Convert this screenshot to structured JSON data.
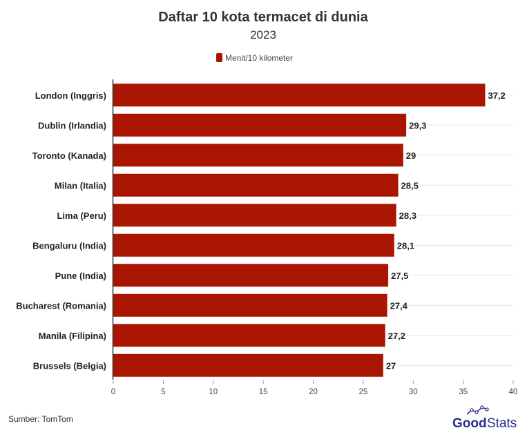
{
  "chart_data": {
    "type": "bar",
    "orientation": "horizontal",
    "title": "Daftar 10 kota termacet di dunia",
    "subtitle": "2023",
    "categories": [
      "London (Inggris)",
      "Dublin (Irlandia)",
      "Toronto (Kanada)",
      "Milan (Italia)",
      "Lima (Peru)",
      "Bengaluru (India)",
      "Pune (India)",
      "Bucharest (Romania)",
      "Manila (Filipina)",
      "Brussels (Belgia)"
    ],
    "series": [
      {
        "name": "Menit/10 kilometer",
        "values": [
          37.2,
          29.3,
          29,
          28.5,
          28.3,
          28.1,
          27.5,
          27.4,
          27.2,
          27
        ],
        "labels": [
          "37,2",
          "29,3",
          "29",
          "28,5",
          "28,3",
          "28,1",
          "27,5",
          "27,4",
          "27,2",
          "27"
        ],
        "color": "#aa1502"
      }
    ],
    "xlim": [
      0,
      40
    ],
    "xticks": [
      "0",
      "5",
      "10",
      "15",
      "20",
      "25",
      "30",
      "35",
      "40"
    ],
    "grid": true,
    "legend_position": "top-center",
    "source": "Sumber: TomTom",
    "logo": "GoodStats"
  }
}
